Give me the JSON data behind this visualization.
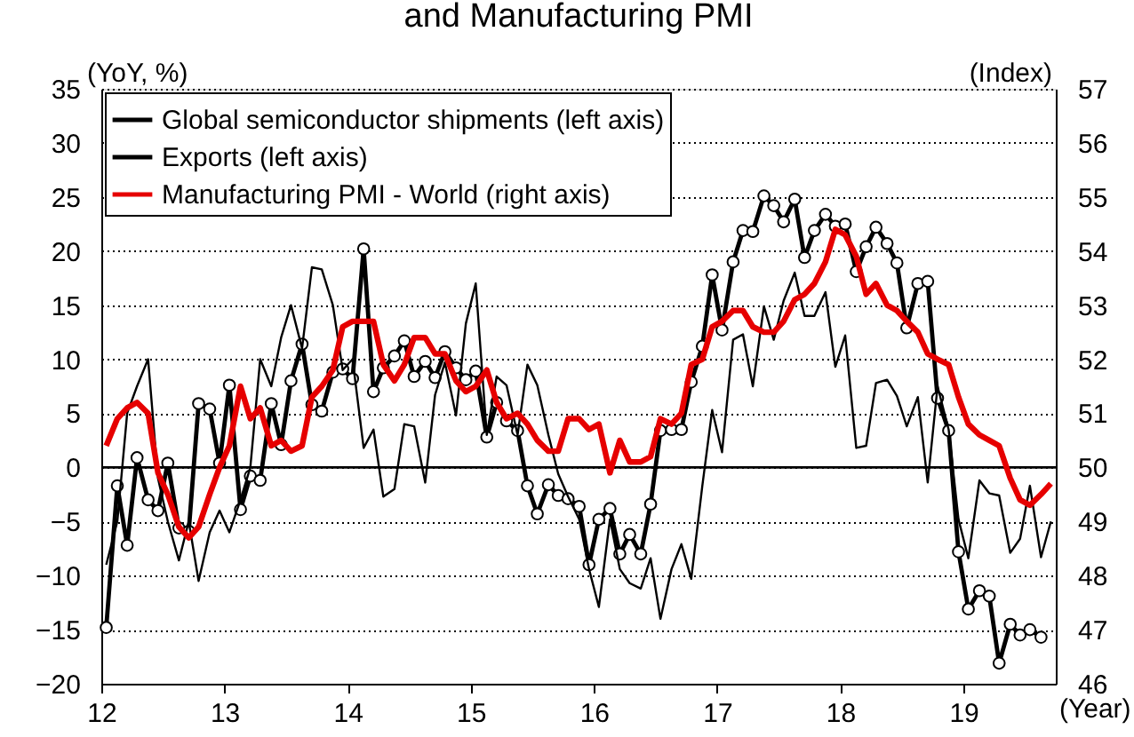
{
  "chart_data": {
    "type": "line",
    "title": "and Manufacturing PMI",
    "ylabel": "(YoY, %)",
    "y2label": "(Index)",
    "xlabel": "(Year)",
    "x": [
      12.04,
      12.13,
      12.21,
      12.29,
      12.38,
      12.46,
      12.54,
      12.63,
      12.71,
      12.79,
      12.88,
      12.96,
      13.04,
      13.13,
      13.21,
      13.29,
      13.38,
      13.46,
      13.54,
      13.63,
      13.71,
      13.79,
      13.88,
      13.96,
      14.04,
      14.13,
      14.21,
      14.29,
      14.38,
      14.46,
      14.54,
      14.63,
      14.71,
      14.79,
      14.88,
      14.96,
      15.04,
      15.13,
      15.21,
      15.29,
      15.38,
      15.46,
      15.54,
      15.63,
      15.71,
      15.79,
      15.88,
      15.96,
      16.04,
      16.13,
      16.21,
      16.29,
      16.38,
      16.46,
      16.54,
      16.63,
      16.71,
      16.79,
      16.88,
      16.96,
      17.04,
      17.13,
      17.21,
      17.29,
      17.38,
      17.46,
      17.54,
      17.63,
      17.71,
      17.79,
      17.88,
      17.96,
      18.04,
      18.13,
      18.21,
      18.29,
      18.38,
      18.46,
      18.54,
      18.63,
      18.71,
      18.79,
      18.88,
      18.96,
      19.04,
      19.13,
      19.21,
      19.29,
      19.38,
      19.46,
      19.54,
      19.63,
      19.71
    ],
    "xlim": [
      12,
      19.75
    ],
    "xticks": [
      12,
      13,
      14,
      15,
      16,
      17,
      18,
      19
    ],
    "ylim": [
      -20,
      35
    ],
    "yticks": [
      -20,
      -15,
      -10,
      -5,
      0,
      5,
      10,
      15,
      20,
      25,
      30,
      35
    ],
    "y2lim": [
      46,
      57
    ],
    "y2ticks": [
      46,
      47,
      48,
      49,
      50,
      51,
      52,
      53,
      54,
      55,
      56,
      57
    ],
    "grid": "y",
    "legend": "top left",
    "ref_lines": [
      {
        "axis": "y",
        "value": 0,
        "color": "#000000"
      }
    ],
    "series": [
      {
        "name": "Global semiconductor shipments (left axis)",
        "color": "#000000",
        "marker": "circle",
        "values": [
          -14.8,
          -1.7,
          -7.2,
          0.9,
          -3.0,
          -4.0,
          0.4,
          -5.6,
          -5.9,
          5.9,
          5.4,
          0.4,
          7.6,
          -3.9,
          -0.8,
          -1.2,
          5.9,
          2.1,
          8.0,
          11.4,
          5.8,
          5.2,
          8.8,
          9.1,
          8.2,
          20.2,
          7.0,
          9.2,
          10.3,
          11.7,
          8.4,
          9.8,
          8.3,
          10.7,
          9.2,
          8.1,
          8.9,
          2.8,
          6.0,
          4.3,
          3.4,
          -1.7,
          -4.3,
          -1.6,
          -2.6,
          -2.9,
          -3.6,
          -9.0,
          -4.8,
          -3.8,
          -8.0,
          -6.2,
          -8.0,
          -3.4,
          3.4,
          3.5,
          3.5,
          7.9,
          11.2,
          17.8,
          12.7,
          19.0,
          21.9,
          21.8,
          25.1,
          24.2,
          22.7,
          24.8,
          19.4,
          21.9,
          23.4,
          22.3,
          22.5,
          18.1,
          20.4,
          22.2,
          20.7,
          18.9,
          12.9,
          17.0,
          17.2,
          6.4,
          3.4,
          -7.8,
          -13.1,
          -11.4,
          -11.9,
          -18.1,
          -14.5,
          -15.5,
          -15.0,
          -15.7,
          null
        ]
      },
      {
        "name": "Exports (left axis)",
        "color": "#000000",
        "marker": "none",
        "values": [
          -9,
          -5,
          5,
          7.5,
          10,
          -1,
          -5,
          -8.6,
          -5,
          -10.5,
          -6,
          -4,
          -6,
          -3,
          0,
          10,
          7.5,
          12,
          15,
          11,
          18.5,
          18.3,
          15,
          9,
          10,
          1.8,
          3.5,
          -2.7,
          -2,
          4,
          3.8,
          -1.4,
          6.7,
          9.7,
          4.8,
          13.3,
          17,
          3,
          8.4,
          7.6,
          3,
          9.5,
          7.6,
          3,
          -0.6,
          -2.7,
          -4.8,
          -9.4,
          -12.9,
          -4.8,
          -9.4,
          -10.7,
          -11.2,
          -8.4,
          -14,
          -9.4,
          -7.1,
          -10.3,
          -1.7,
          5.3,
          1.4,
          11.8,
          12.3,
          7.5,
          14.9,
          11.8,
          15.4,
          18,
          14,
          14,
          16.2,
          9.3,
          12.2,
          1.8,
          2,
          7.8,
          8.1,
          6.6,
          3.8,
          6.5,
          -1.4,
          7.5,
          3.5,
          -4.8,
          -8.4,
          -1.2,
          -2.4,
          -2.6,
          -7.9,
          -6.6,
          -1.7,
          -8.3,
          -5.0
        ]
      },
      {
        "name": "Manufacturing PMI - World (right axis)",
        "color": "#e60000",
        "marker": "none",
        "axis": "y2",
        "values": [
          50.4,
          50.9,
          51.1,
          51.2,
          51.0,
          49.9,
          49.5,
          48.9,
          48.7,
          48.9,
          49.5,
          50.0,
          50.4,
          51.5,
          50.9,
          51.1,
          50.4,
          50.5,
          50.3,
          50.4,
          51.3,
          51.5,
          51.8,
          52.6,
          52.7,
          52.7,
          52.7,
          51.9,
          51.6,
          51.9,
          52.4,
          52.4,
          52.1,
          52.1,
          51.6,
          51.4,
          51.5,
          51.8,
          51.2,
          50.9,
          51.0,
          50.8,
          50.5,
          50.3,
          50.3,
          50.9,
          50.9,
          50.7,
          50.8,
          49.9,
          50.5,
          50.1,
          50.1,
          50.2,
          50.9,
          50.8,
          51.0,
          51.9,
          52.0,
          52.6,
          52.7,
          52.9,
          52.9,
          52.6,
          52.5,
          52.5,
          52.7,
          53.1,
          53.2,
          53.4,
          53.8,
          54.4,
          54.3,
          53.9,
          53.2,
          53.4,
          53.0,
          52.9,
          52.7,
          52.5,
          52.1,
          52.0,
          51.9,
          51.3,
          50.8,
          50.6,
          50.5,
          50.4,
          49.8,
          49.4,
          49.3,
          49.5,
          49.7
        ]
      }
    ]
  }
}
